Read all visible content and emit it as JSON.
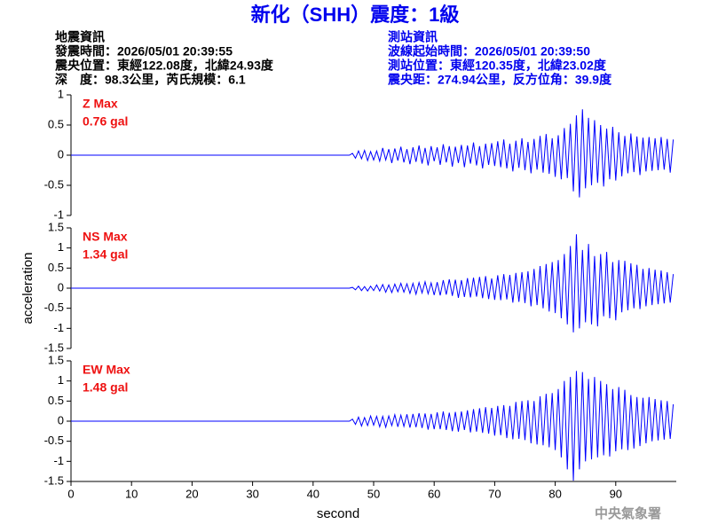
{
  "header": {
    "title": "新化（SHH）震度：1級",
    "quake_info": [
      "地震資訊",
      "發震時間：2026/05/01 20:39:55",
      "震央位置：東經122.08度，北緯24.93度",
      "深　度：98.3公里，芮氏規模：6.1"
    ],
    "station_info": [
      "測站資訊",
      "波線起始時間：2026/05/01 20:39:50",
      "測站位置：東經120.35度，北緯23.02度",
      "震央距：274.94公里，反方位角：39.9度"
    ],
    "watermark": "中央氣象署"
  },
  "chart_data": [
    {
      "type": "line",
      "label": "Z Max",
      "peak": "0.76 gal",
      "xlim": [
        0,
        100
      ],
      "ylim": [
        -1,
        1
      ],
      "yticks": [
        -1,
        -0.5,
        0,
        0.5,
        1
      ],
      "x": [
        0,
        46,
        46.5,
        47,
        47.5,
        48,
        48.5,
        49,
        49.5,
        50,
        50.5,
        51,
        51.5,
        52,
        52.5,
        53,
        53.5,
        54,
        54.5,
        55,
        55.5,
        56,
        56.5,
        57,
        57.5,
        58,
        58.5,
        59,
        59.5,
        60,
        60.5,
        61,
        61.5,
        62,
        62.5,
        63,
        63.5,
        64,
        64.5,
        65,
        65.5,
        66,
        66.5,
        67,
        67.5,
        68,
        68.5,
        69,
        69.5,
        70,
        70.5,
        71,
        71.5,
        72,
        72.5,
        73,
        73.5,
        74,
        74.5,
        75,
        75.5,
        76,
        76.5,
        77,
        77.5,
        78,
        78.5,
        79,
        79.5,
        80,
        80.5,
        81,
        81.5,
        82,
        82.5,
        83,
        83.5,
        84,
        84.5,
        85,
        85.5,
        86,
        86.5,
        87,
        87.5,
        88,
        88.5,
        89,
        89.5,
        90,
        90.5,
        91,
        91.5,
        92,
        92.5,
        93,
        93.5,
        94,
        94.5,
        95,
        95.5,
        96,
        96.5,
        97,
        97.5,
        98,
        98.5,
        99,
        99.5
      ],
      "series": [
        {
          "color": "#0000ff",
          "values": [
            0,
            0,
            0.03,
            -0.05,
            0.07,
            -0.06,
            0.08,
            -0.09,
            0.06,
            -0.08,
            0.07,
            -0.1,
            0.12,
            -0.08,
            0.1,
            -0.13,
            0.11,
            -0.09,
            0.14,
            -0.12,
            0.1,
            -0.15,
            0.13,
            -0.11,
            0.16,
            -0.14,
            0.12,
            -0.17,
            0.15,
            -0.1,
            0.13,
            -0.16,
            0.18,
            -0.12,
            0.15,
            -0.19,
            0.14,
            -0.13,
            0.17,
            -0.2,
            0.16,
            -0.14,
            0.21,
            -0.17,
            0.15,
            -0.22,
            0.19,
            -0.16,
            0.2,
            -0.18,
            0.23,
            -0.2,
            0.26,
            -0.22,
            0.19,
            -0.27,
            0.24,
            -0.21,
            0.28,
            -0.25,
            0.22,
            -0.3,
            0.27,
            -0.24,
            0.32,
            -0.29,
            0.35,
            -0.31,
            0.28,
            -0.36,
            0.33,
            -0.4,
            0.45,
            -0.38,
            0.52,
            -0.6,
            0.66,
            -0.7,
            0.76,
            -0.55,
            0.62,
            -0.5,
            0.58,
            -0.46,
            0.5,
            -0.52,
            0.44,
            -0.4,
            0.47,
            -0.42,
            0.38,
            -0.35,
            0.32,
            -0.3,
            0.36,
            -0.28,
            0.31,
            -0.33,
            0.29,
            -0.27,
            0.3,
            -0.26,
            0.28,
            -0.25,
            0.3,
            -0.24,
            0.27,
            -0.29,
            0.26
          ]
        }
      ]
    },
    {
      "type": "line",
      "label": "NS Max",
      "peak": "1.34 gal",
      "ylabel": "acceleration",
      "xlim": [
        0,
        100
      ],
      "ylim": [
        -1.5,
        1.5
      ],
      "yticks": [
        -1.5,
        -1,
        -0.5,
        0,
        0.5,
        1,
        1.5
      ],
      "x": [
        0,
        46,
        46.5,
        47,
        47.5,
        48,
        48.5,
        49,
        49.5,
        50,
        50.5,
        51,
        51.5,
        52,
        52.5,
        53,
        53.5,
        54,
        54.5,
        55,
        55.5,
        56,
        56.5,
        57,
        57.5,
        58,
        58.5,
        59,
        59.5,
        60,
        60.5,
        61,
        61.5,
        62,
        62.5,
        63,
        63.5,
        64,
        64.5,
        65,
        65.5,
        66,
        66.5,
        67,
        67.5,
        68,
        68.5,
        69,
        69.5,
        70,
        70.5,
        71,
        71.5,
        72,
        72.5,
        73,
        73.5,
        74,
        74.5,
        75,
        75.5,
        76,
        76.5,
        77,
        77.5,
        78,
        78.5,
        79,
        79.5,
        80,
        80.5,
        81,
        81.5,
        82,
        82.5,
        83,
        83.5,
        84,
        84.5,
        85,
        85.5,
        86,
        86.5,
        87,
        87.5,
        88,
        88.5,
        89,
        89.5,
        90,
        90.5,
        91,
        91.5,
        92,
        92.5,
        93,
        93.5,
        94,
        94.5,
        95,
        95.5,
        96,
        96.5,
        97,
        97.5,
        98,
        98.5,
        99,
        99.5
      ],
      "series": [
        {
          "color": "#0000ff",
          "values": [
            0,
            0,
            0.02,
            -0.04,
            0.05,
            -0.06,
            0.04,
            -0.07,
            0.05,
            -0.06,
            0.08,
            -0.07,
            0.09,
            -0.1,
            0.08,
            -0.11,
            0.1,
            -0.09,
            0.12,
            -0.1,
            0.11,
            -0.13,
            0.12,
            -0.15,
            0.14,
            -0.12,
            0.16,
            -0.14,
            0.13,
            -0.17,
            0.15,
            -0.18,
            0.2,
            -0.16,
            0.22,
            -0.19,
            0.21,
            -0.24,
            0.2,
            -0.22,
            0.25,
            -0.23,
            0.26,
            -0.21,
            0.28,
            -0.25,
            0.3,
            -0.27,
            0.24,
            -0.29,
            0.32,
            -0.3,
            0.35,
            -0.28,
            0.33,
            -0.36,
            0.38,
            -0.34,
            0.4,
            -0.37,
            0.42,
            -0.45,
            0.48,
            -0.42,
            0.55,
            -0.5,
            0.6,
            -0.58,
            0.65,
            -0.62,
            0.7,
            -0.75,
            0.85,
            -0.9,
            1.05,
            -1.1,
            1.34,
            -1.0,
            0.95,
            -0.85,
            1.1,
            -0.9,
            0.8,
            -0.95,
            0.85,
            -0.7,
            0.9,
            -0.75,
            0.65,
            -0.8,
            0.7,
            -0.6,
            0.68,
            -0.55,
            0.62,
            -0.5,
            0.58,
            -0.52,
            0.48,
            -0.45,
            0.5,
            -0.42,
            0.46,
            -0.4,
            0.44,
            -0.38,
            0.4,
            -0.36,
            0.35
          ]
        }
      ]
    },
    {
      "type": "line",
      "label": "EW Max",
      "peak": "1.48 gal",
      "xlabel": "second",
      "xlim": [
        0,
        100
      ],
      "xticks": [
        0,
        10,
        20,
        30,
        40,
        50,
        60,
        70,
        80,
        90
      ],
      "ylim": [
        -1.5,
        1.5
      ],
      "yticks": [
        -1.5,
        -1,
        -0.5,
        0,
        0.5,
        1,
        1.5
      ],
      "x": [
        0,
        46,
        46.5,
        47,
        47.5,
        48,
        48.5,
        49,
        49.5,
        50,
        50.5,
        51,
        51.5,
        52,
        52.5,
        53,
        53.5,
        54,
        54.5,
        55,
        55.5,
        56,
        56.5,
        57,
        57.5,
        58,
        58.5,
        59,
        59.5,
        60,
        60.5,
        61,
        61.5,
        62,
        62.5,
        63,
        63.5,
        64,
        64.5,
        65,
        65.5,
        66,
        66.5,
        67,
        67.5,
        68,
        68.5,
        69,
        69.5,
        70,
        70.5,
        71,
        71.5,
        72,
        72.5,
        73,
        73.5,
        74,
        74.5,
        75,
        75.5,
        76,
        76.5,
        77,
        77.5,
        78,
        78.5,
        79,
        79.5,
        80,
        80.5,
        81,
        81.5,
        82,
        82.5,
        83,
        83.5,
        84,
        84.5,
        85,
        85.5,
        86,
        86.5,
        87,
        87.5,
        88,
        88.5,
        89,
        89.5,
        90,
        90.5,
        91,
        91.5,
        92,
        92.5,
        93,
        93.5,
        94,
        94.5,
        95,
        95.5,
        96,
        96.5,
        97,
        97.5,
        98,
        98.5,
        99,
        99.5
      ],
      "series": [
        {
          "color": "#0000ff",
          "values": [
            0,
            0,
            0.05,
            -0.08,
            0.1,
            -0.12,
            0.09,
            -0.11,
            0.13,
            -0.1,
            0.12,
            -0.14,
            0.12,
            -0.15,
            0.13,
            -0.11,
            0.16,
            -0.14,
            0.15,
            -0.13,
            0.17,
            -0.16,
            0.18,
            -0.15,
            0.2,
            -0.17,
            0.19,
            -0.21,
            0.18,
            -0.2,
            0.22,
            -0.2,
            0.24,
            -0.22,
            0.21,
            -0.25,
            0.23,
            -0.26,
            0.24,
            -0.22,
            0.27,
            -0.28,
            0.3,
            -0.26,
            0.32,
            -0.29,
            0.35,
            -0.31,
            0.33,
            -0.36,
            0.38,
            -0.35,
            0.4,
            -0.42,
            0.38,
            -0.45,
            0.48,
            -0.44,
            0.5,
            -0.47,
            0.52,
            -0.55,
            0.5,
            -0.58,
            0.62,
            -0.6,
            0.68,
            -0.65,
            0.7,
            -0.72,
            0.8,
            -0.9,
            1.0,
            -1.2,
            1.1,
            -1.48,
            1.25,
            -1.2,
            1.22,
            -1.0,
            1.05,
            -0.95,
            1.1,
            -0.9,
            1.0,
            -0.85,
            0.92,
            -0.88,
            0.8,
            -0.75,
            0.85,
            -0.7,
            0.78,
            -0.72,
            0.65,
            -0.68,
            0.6,
            -0.62,
            0.58,
            -0.55,
            0.6,
            -0.5,
            0.55,
            -0.48,
            0.52,
            -0.46,
            0.5,
            -0.44,
            0.42
          ]
        }
      ]
    }
  ]
}
